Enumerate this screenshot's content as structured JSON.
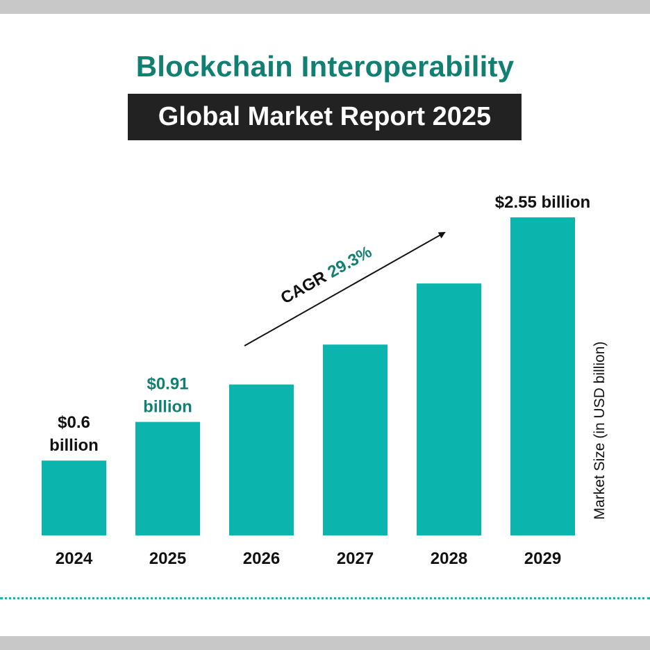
{
  "header": {
    "title": "Blockchain Interoperability",
    "subtitle": "Global Market Report 2025"
  },
  "colors": {
    "bar": "#0bb5ae",
    "title": "#127f73",
    "highlight": "#127f73",
    "subtitle_bg": "#222222"
  },
  "chart_data": {
    "type": "bar",
    "title": "Blockchain Interoperability",
    "subtitle": "Global Market Report 2025",
    "categories": [
      "2024",
      "2025",
      "2026",
      "2027",
      "2028",
      "2029"
    ],
    "values": [
      0.6,
      0.91,
      1.21,
      1.53,
      2.02,
      2.55
    ],
    "data_labels": [
      {
        "category": "2024",
        "lines": [
          "$0.6",
          "billion"
        ],
        "highlight": false
      },
      {
        "category": "2025",
        "lines": [
          "$0.91",
          "billion"
        ],
        "highlight": true
      },
      {
        "category": "2029",
        "lines": [
          "$2.55 billion"
        ],
        "highlight": false
      }
    ],
    "xlabel": "",
    "ylabel": "Market Size (in USD billion)",
    "ylim": [
      0,
      2.55
    ],
    "grid": false,
    "annotation": {
      "prefix": "CAGR ",
      "value": "29.3%"
    }
  }
}
